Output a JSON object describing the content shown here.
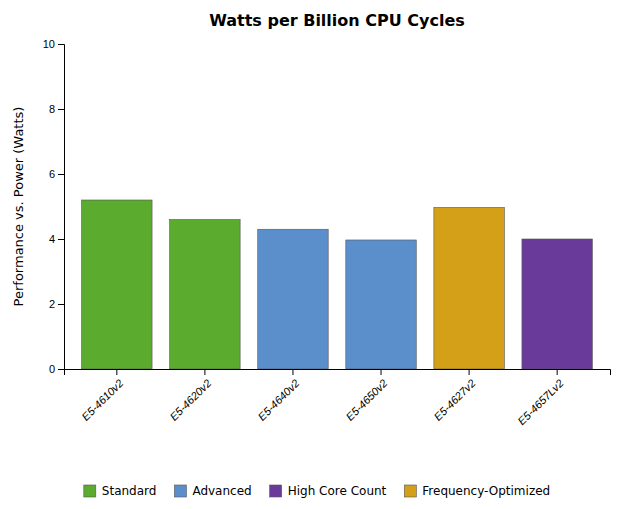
{
  "chart_data": {
    "type": "bar",
    "title": "Watts per Billion CPU Cycles",
    "ylabel": "Performance vs. Power (Watts)",
    "categories": [
      "E5-4610v2",
      "E5-4620v2",
      "E5-4640v2",
      "E5-4650v2",
      "E5-4627v2",
      "E5-4657Lv2"
    ],
    "series": [
      {
        "name": "Standard",
        "color": "#5aab2e",
        "values": [
          5.2,
          4.6,
          null,
          null,
          null,
          null
        ]
      },
      {
        "name": "Advanced",
        "color": "#5b8fcc",
        "values": [
          null,
          null,
          4.3,
          3.97,
          null,
          null
        ]
      },
      {
        "name": "High Core Count",
        "color": "#6a3a9b",
        "values": [
          null,
          null,
          null,
          null,
          null,
          4.0
        ]
      },
      {
        "name": "Frequency-Optimized",
        "color": "#d4a017",
        "values": [
          null,
          null,
          null,
          null,
          4.97,
          null
        ]
      }
    ],
    "ylim": [
      0,
      10
    ],
    "yticks": [
      0,
      2,
      4,
      6,
      8,
      10
    ],
    "grid": false,
    "legend": "bottom"
  }
}
